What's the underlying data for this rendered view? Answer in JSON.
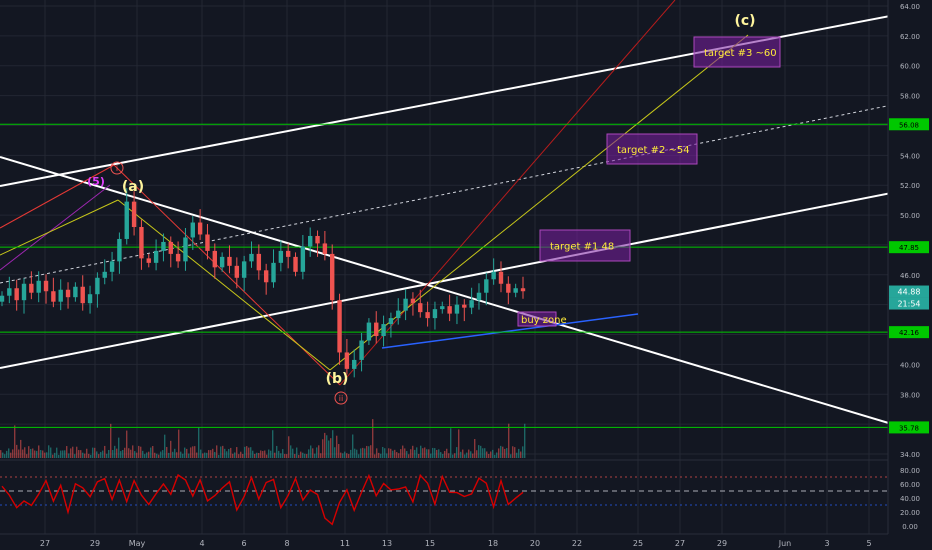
{
  "chart_data": {
    "type": "line",
    "title": "",
    "xlabel": "",
    "ylabel": "",
    "ylim": [
      33.0,
      64.0
    ],
    "grid": true,
    "x_ticks": [
      "27",
      "29",
      "May",
      "4",
      "6",
      "8",
      "11",
      "13",
      "15",
      "18",
      "20",
      "22",
      "25",
      "27",
      "29",
      "Jun",
      "3",
      "5"
    ],
    "y_ticks": [
      "64.00",
      "62.00",
      "60.00",
      "58.00",
      "56.00",
      "54.00",
      "52.00",
      "50.00",
      "48.00",
      "46.00",
      "44.00",
      "42.00",
      "40.00",
      "38.00",
      "36.00",
      "34.00"
    ],
    "horizontal_levels": [
      {
        "value": 56.08,
        "label": "56.08",
        "color": "#00c800"
      },
      {
        "value": 47.85,
        "label": "47.85",
        "color": "#00c800"
      },
      {
        "value": 42.16,
        "label": "42.16",
        "color": "#00c800"
      },
      {
        "value": 35.78,
        "label": "35.78",
        "color": "#00c800"
      }
    ],
    "price_tags": [
      {
        "value": 44.88,
        "label": "44.88",
        "color": "#26a69a"
      },
      {
        "value": 43.7,
        "label": "21:54",
        "color": "#26a69a"
      }
    ],
    "wave_labels": [
      {
        "text": "(5)",
        "x": "Apr 29",
        "y": 52.4,
        "color": "#e040fb"
      },
      {
        "text": "i",
        "x": "Apr 30",
        "y": 52.9,
        "color": "#ef5350",
        "circled": true
      },
      {
        "text": "(a)",
        "x": "May 1",
        "y": 51.9,
        "color": "#fff59d"
      },
      {
        "text": "(b)",
        "x": "May 10",
        "y": 38.2,
        "color": "#fff59d"
      },
      {
        "text": "ii",
        "x": "May 10",
        "y": 37.2,
        "color": "#ef5350",
        "circled": true
      },
      {
        "text": "(c)",
        "x": "May 28",
        "y": 63.3,
        "color": "#fff59d"
      }
    ],
    "annotations": [
      {
        "text": "target #3 ~60",
        "x": "May 28",
        "y": 60.6
      },
      {
        "text": "target #2 ~54",
        "x": "May 25",
        "y": 54.6
      },
      {
        "text": "target #1 48",
        "x": "May 21",
        "y": 48.1
      },
      {
        "text": "buy zone",
        "x": "May 20",
        "y": 43.3
      }
    ],
    "series": [
      {
        "values": [
          44.6,
          45.1,
          44.3,
          45.4,
          44.8,
          45.6,
          44.9,
          44.2,
          45.0,
          44.5,
          45.2,
          44.1,
          44.7,
          45.8,
          46.2,
          46.9,
          48.4,
          50.9,
          49.2,
          47.1,
          46.8,
          47.6,
          48.2,
          47.4,
          46.9,
          48.5,
          49.5,
          48.7,
          47.6,
          46.5,
          47.2,
          46.6,
          45.8,
          46.9,
          47.4,
          46.3,
          45.5,
          46.8,
          47.6,
          47.2,
          46.2,
          47.9,
          48.6,
          48.1,
          47.4,
          44.3,
          40.8,
          39.7,
          40.3,
          41.6,
          42.8,
          41.9,
          42.7,
          43.1,
          43.6,
          44.4,
          44.1,
          43.5,
          43.1,
          43.7,
          43.9,
          43.4,
          44.0,
          43.8,
          44.3,
          44.8,
          45.7,
          46.2,
          45.4,
          44.8,
          45.1,
          44.9
        ]
      },
      {
        "name": "",
        "values": [
          56.8,
          44.2,
          26.1,
          35.7,
          29.4,
          45.6,
          64.8,
          35.5,
          58.1,
          19.8,
          60.3,
          54.6,
          41.9,
          63.2,
          67.7,
          37.8,
          65.4,
          34.9,
          64.7,
          44.1,
          30.9,
          46.2,
          60.1,
          45.3,
          72.8,
          65.7,
          42.8,
          65.9,
          35.9,
          43.5,
          54.2,
          63.1,
          22.8,
          42.1,
          69.4,
          38.5,
          62.2,
          66.4,
          26.1,
          43.9,
          67.8,
          37.0,
          51.3,
          45.0,
          11.3,
          2.4,
          33.6,
          51.7,
          22.4,
          48.4,
          72.0,
          43.2,
          60.7,
          51.5,
          52.8,
          55.9,
          34.4,
          72.4,
          61.1,
          31.1,
          70.6,
          48.2,
          47.7,
          42.2,
          45.9,
          68.3,
          61.2,
          27.4,
          64.7,
          30.9,
          39.8,
          48.2
        ]
      }
    ],
    "rsi": {
      "ticks": [
        "80.00",
        "60.00",
        "40.00",
        "20.00",
        "0.00"
      ],
      "ylim": [
        0,
        100
      ]
    },
    "colors": {
      "background": "#131722",
      "grid": "#232733",
      "axis_text": "#b2b5be",
      "level": "#00c800",
      "up": "#26a69a",
      "down": "#ef5350",
      "rsi": "#d50000",
      "zone": "#7b1fa2"
    }
  }
}
